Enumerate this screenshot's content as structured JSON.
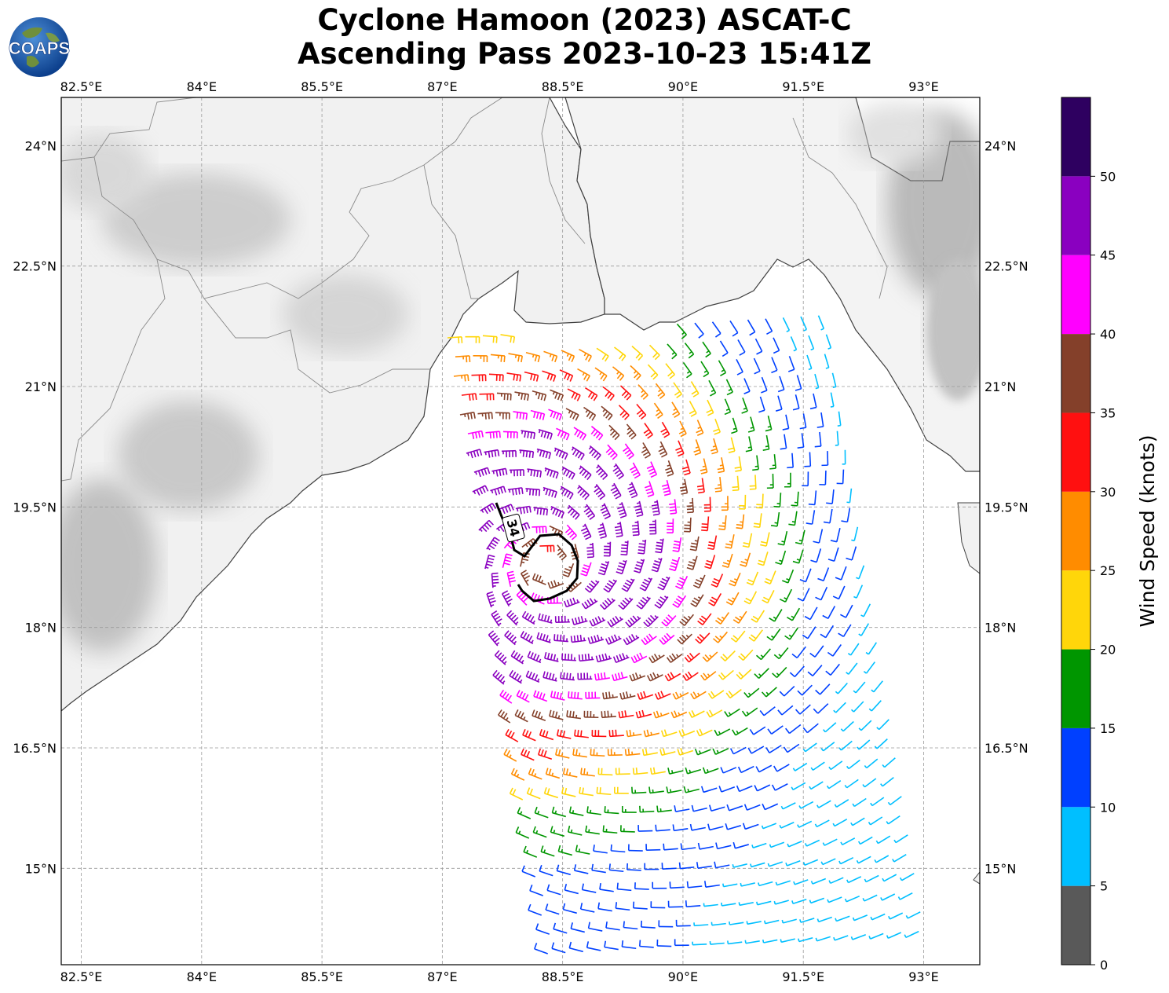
{
  "title": {
    "line1": "Cyclone Hamoon (2023) ASCAT-C",
    "line2": "Ascending Pass 2023-10-23 15:41Z"
  },
  "logo": {
    "text": "COAPS",
    "icon": "globe-icon"
  },
  "map": {
    "lon_ticks": [
      "82.5°E",
      "84°E",
      "85.5°E",
      "87°E",
      "88.5°E",
      "90°E",
      "91.5°E",
      "93°E"
    ],
    "lat_ticks": [
      "24°N",
      "22.5°N",
      "21°N",
      "19.5°N",
      "18°N",
      "16.5°N",
      "15°N"
    ],
    "lon_values": [
      82.5,
      84,
      85.5,
      87,
      88.5,
      90,
      91.5,
      93
    ],
    "lat_values": [
      24,
      22.5,
      21,
      19.5,
      18,
      16.5,
      15
    ],
    "extent": {
      "lon_min": 82.25,
      "lon_max": 93.7,
      "lat_min": 13.8,
      "lat_max": 24.6
    },
    "storm_center": {
      "lon": 88.3,
      "lat": 18.8
    },
    "wind_radius_label": "34",
    "gridlines": true
  },
  "colorbar": {
    "label": "Wind Speed (knots)",
    "ticks": [
      "0",
      "5",
      "10",
      "15",
      "20",
      "25",
      "30",
      "35",
      "40",
      "45",
      "50"
    ],
    "bins": [
      {
        "from": 0,
        "to": 5,
        "color": "#595959"
      },
      {
        "from": 5,
        "to": 10,
        "color": "#00bfff"
      },
      {
        "from": 10,
        "to": 15,
        "color": "#0040ff"
      },
      {
        "from": 15,
        "to": 20,
        "color": "#009600"
      },
      {
        "from": 20,
        "to": 25,
        "color": "#ffd60a"
      },
      {
        "from": 25,
        "to": 30,
        "color": "#ff8c00"
      },
      {
        "from": 30,
        "to": 35,
        "color": "#ff1010"
      },
      {
        "from": 35,
        "to": 40,
        "color": "#84402a"
      },
      {
        "from": 40,
        "to": 45,
        "color": "#ff00ff"
      },
      {
        "from": 45,
        "to": 50,
        "color": "#8a00c0"
      },
      {
        "from": 50,
        "to": 55,
        "color": "#2e0060"
      }
    ]
  }
}
